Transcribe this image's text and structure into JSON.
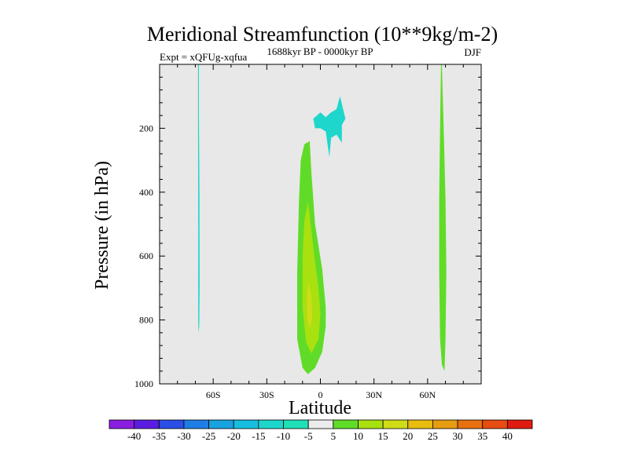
{
  "chart_data": {
    "type": "contour",
    "title": "Meridional Streamfunction (10**9kg/m-2)",
    "subtitle_left": "Expt = xQFUg-xqfua",
    "subtitle_center": "1688kyr BP - 0000kyr BP",
    "subtitle_right": "DJF",
    "xlabel": "Latitude",
    "ylabel": "Pressure (in hPa)",
    "xlim": [
      -90,
      90
    ],
    "ylim": [
      1000,
      0
    ],
    "x_ticks": [
      {
        "value": -60,
        "label": "60S"
      },
      {
        "value": -30,
        "label": "30S"
      },
      {
        "value": 0,
        "label": "0"
      },
      {
        "value": 30,
        "label": "30N"
      },
      {
        "value": 60,
        "label": "60N"
      }
    ],
    "y_ticks": [
      {
        "value": 200,
        "label": "200"
      },
      {
        "value": 400,
        "label": "400"
      },
      {
        "value": 600,
        "label": "600"
      },
      {
        "value": 800,
        "label": "800"
      },
      {
        "value": 1000,
        "label": "1000"
      }
    ],
    "background_color": "#e8e8e8",
    "levels": [
      -40,
      -35,
      -30,
      -25,
      -20,
      -15,
      -10,
      -5,
      5,
      10,
      15,
      20,
      25,
      30,
      35,
      40
    ],
    "level_labels": [
      "-40",
      "-35",
      "-30",
      "-25",
      "-20",
      "-15",
      "-10",
      "-5",
      "5",
      "10",
      "15",
      "20",
      "25",
      "30",
      "35",
      "40"
    ],
    "colors": [
      "#8a1ee0",
      "#5a1ee0",
      "#2a4ee6",
      "#1e7ee6",
      "#18a2e0",
      "#18bedf",
      "#1ed6cc",
      "#20e0b8",
      "#ececec",
      "#60dc28",
      "#a8e010",
      "#d0dc18",
      "#e8bc10",
      "#e89c10",
      "#e87010",
      "#e84c10",
      "#e01c10"
    ],
    "regions": [
      {
        "name": "neg-strip-60s",
        "color": "#1ed6cc",
        "points": [
          [
            -68.5,
            0
          ],
          [
            -68.0,
            0
          ],
          [
            -68.0,
            160
          ],
          [
            -67.7,
            420
          ],
          [
            -67.6,
            700
          ],
          [
            -67.8,
            820
          ],
          [
            -68.2,
            840
          ],
          [
            -68.4,
            800
          ],
          [
            -68.4,
            500
          ],
          [
            -68.5,
            200
          ]
        ]
      },
      {
        "name": "neg-patch-200hpa",
        "color": "#1ed6cc",
        "points": [
          [
            -4,
            170
          ],
          [
            0,
            150
          ],
          [
            3,
            165
          ],
          [
            6,
            150
          ],
          [
            9,
            140
          ],
          [
            11,
            100
          ],
          [
            14,
            170
          ],
          [
            12,
            190
          ],
          [
            12,
            245
          ],
          [
            9,
            220
          ],
          [
            6,
            230
          ],
          [
            5,
            290
          ],
          [
            3,
            210
          ],
          [
            0,
            200
          ],
          [
            -3,
            200
          ]
        ]
      },
      {
        "name": "pos-5-eq",
        "color": "#60dc28",
        "points": [
          [
            -9,
            250
          ],
          [
            -6,
            240
          ],
          [
            -5,
            340
          ],
          [
            -3,
            500
          ],
          [
            1,
            640
          ],
          [
            3,
            760
          ],
          [
            3,
            820
          ],
          [
            1,
            900
          ],
          [
            -3,
            950
          ],
          [
            -7,
            970
          ],
          [
            -10,
            950
          ],
          [
            -13,
            860
          ],
          [
            -13,
            650
          ],
          [
            -12,
            430
          ],
          [
            -11,
            300
          ]
        ]
      },
      {
        "name": "pos-10-eq",
        "color": "#a8e010",
        "points": [
          [
            -7,
            430
          ],
          [
            -5,
            520
          ],
          [
            -3,
            620
          ],
          [
            -1,
            700
          ],
          [
            0,
            780
          ],
          [
            -1,
            860
          ],
          [
            -5,
            905
          ],
          [
            -8,
            870
          ],
          [
            -10,
            760
          ],
          [
            -10,
            600
          ],
          [
            -9,
            490
          ]
        ]
      },
      {
        "name": "pos-15-eq",
        "color": "#d0dc18",
        "points": [
          [
            -6.5,
            680
          ],
          [
            -5,
            730
          ],
          [
            -4.5,
            790
          ],
          [
            -6,
            830
          ],
          [
            -7.5,
            790
          ],
          [
            -7.5,
            720
          ]
        ]
      },
      {
        "name": "pos-5-60n",
        "color": "#60dc28",
        "points": [
          [
            67.5,
            0
          ],
          [
            68.0,
            0
          ],
          [
            69.0,
            200
          ],
          [
            70.0,
            420
          ],
          [
            70.5,
            650
          ],
          [
            70.0,
            860
          ],
          [
            69.5,
            960
          ],
          [
            68.0,
            940
          ],
          [
            67.0,
            860
          ],
          [
            66.5,
            650
          ],
          [
            66.5,
            420
          ],
          [
            67.0,
            200
          ]
        ]
      }
    ]
  }
}
